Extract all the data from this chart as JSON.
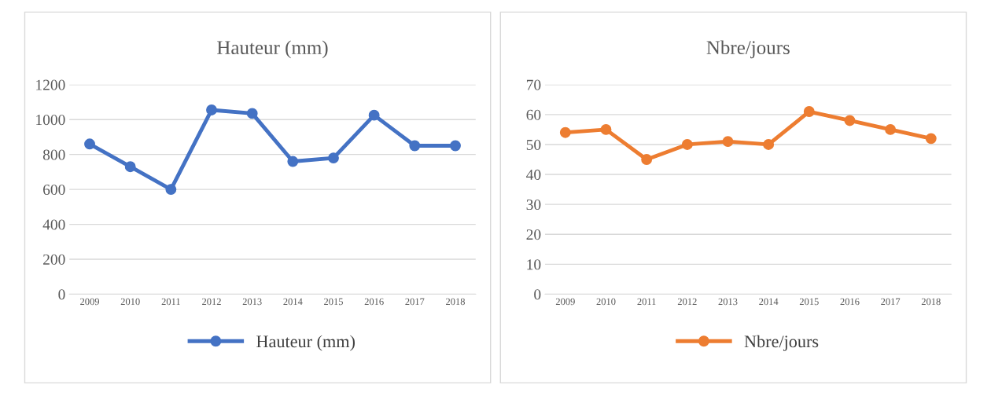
{
  "chart_data": [
    {
      "type": "line",
      "title": "Hauteur (mm)",
      "categories": [
        "2009",
        "2010",
        "2011",
        "2012",
        "2013",
        "2014",
        "2015",
        "2016",
        "2017",
        "2018"
      ],
      "series": [
        {
          "name": "Hauteur (mm)",
          "color": "#4472c4",
          "values": [
            860,
            730,
            600,
            1055,
            1035,
            760,
            780,
            1025,
            850,
            850
          ]
        }
      ],
      "ylim": [
        0,
        1200
      ],
      "yticks": [
        0,
        200,
        400,
        600,
        800,
        1000,
        1200
      ],
      "grid": "y",
      "legend": "bottom",
      "marker": "circle",
      "line_style": "solid"
    },
    {
      "type": "line",
      "title": "Nbre/jours",
      "categories": [
        "2009",
        "2010",
        "2011",
        "2012",
        "2013",
        "2014",
        "2015",
        "2016",
        "2017",
        "2018"
      ],
      "series": [
        {
          "name": "Nbre/jours",
          "color": "#ed7d31",
          "values": [
            54,
            55,
            45,
            50,
            51,
            50,
            61,
            58,
            55,
            52
          ]
        }
      ],
      "ylim": [
        0,
        70
      ],
      "yticks": [
        0,
        10,
        20,
        30,
        40,
        50,
        60,
        70
      ],
      "grid": "y",
      "legend": "bottom",
      "marker": "circle",
      "line_style": "solid"
    }
  ]
}
